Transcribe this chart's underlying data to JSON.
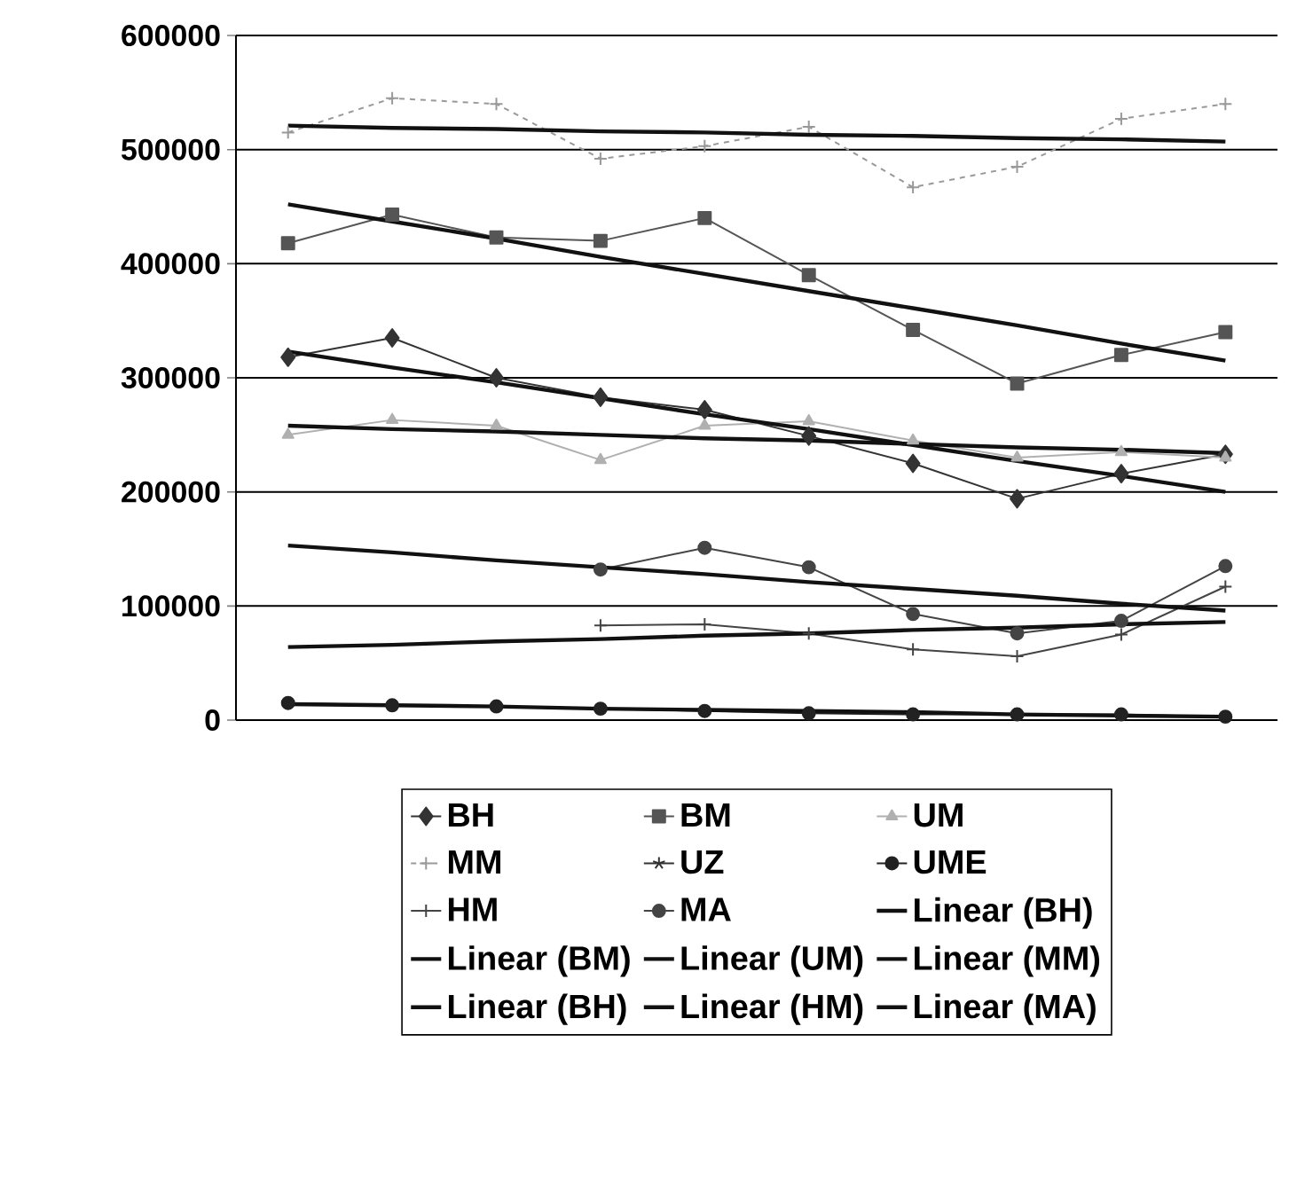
{
  "chart_data": {
    "type": "line",
    "categories": [
      null,
      null,
      null,
      null,
      null,
      null,
      null,
      null,
      null,
      null
    ],
    "ylim": [
      0,
      600000
    ],
    "yticks": [
      0,
      100000,
      200000,
      300000,
      400000,
      500000,
      600000
    ],
    "grid": "y",
    "legend": "bottom",
    "tick_labels": "y",
    "series": [
      {
        "name": "BH",
        "color": "#333333",
        "marker": "diamond",
        "values": [
          318000,
          335000,
          300000,
          283000,
          272000,
          249000,
          225000,
          194000,
          216000,
          233000
        ]
      },
      {
        "name": "BM",
        "color": "#555555",
        "marker": "square",
        "values": [
          418000,
          443000,
          423000,
          420000,
          440000,
          390000,
          342000,
          295000,
          320000,
          340000
        ]
      },
      {
        "name": "UM",
        "color": "#b0b0b0",
        "marker": "triangle",
        "values": [
          250000,
          263000,
          258000,
          228000,
          258000,
          262000,
          245000,
          230000,
          235000,
          230000
        ]
      },
      {
        "name": "MM",
        "color": "#999999",
        "marker": "cross",
        "line_style": "dashed",
        "values": [
          515000,
          545000,
          540000,
          492000,
          503000,
          520000,
          467000,
          485000,
          527000,
          540000
        ]
      },
      {
        "name": "UZ",
        "color": "#333333",
        "marker": "star",
        "values": [
          null,
          null,
          null,
          null,
          null,
          null,
          null,
          null,
          null,
          null
        ]
      },
      {
        "name": "UME",
        "color": "#222222",
        "marker": "circle",
        "values": [
          15000,
          13000,
          12000,
          10000,
          8000,
          6000,
          5000,
          5000,
          5000,
          3000
        ]
      },
      {
        "name": "HM",
        "color": "#444444",
        "marker": "cross",
        "values": [
          null,
          null,
          null,
          83000,
          84000,
          76000,
          62000,
          56000,
          75000,
          117000
        ]
      },
      {
        "name": "MA",
        "color": "#444444",
        "marker": "circle",
        "values": [
          null,
          null,
          null,
          132000,
          151000,
          134000,
          93000,
          76000,
          87000,
          135000
        ]
      },
      {
        "name": "Linear (BH)",
        "color": "#111111",
        "marker": "none",
        "values": [
          323000,
          309000,
          296000,
          282000,
          268000,
          255000,
          241000,
          227000,
          214000,
          200000
        ]
      },
      {
        "name": "Linear (BM)",
        "color": "#111111",
        "marker": "none",
        "values": [
          452000,
          437000,
          422000,
          406000,
          391000,
          376000,
          361000,
          346000,
          330000,
          315000
        ]
      },
      {
        "name": "Linear (UM)",
        "color": "#111111",
        "marker": "none",
        "values": [
          258000,
          255000,
          253000,
          250000,
          247000,
          245000,
          242000,
          239000,
          237000,
          234000
        ]
      },
      {
        "name": "Linear (MM)",
        "color": "#111111",
        "marker": "none",
        "values": [
          521000,
          519000,
          518000,
          516000,
          515000,
          513000,
          512000,
          510000,
          509000,
          507000
        ]
      },
      {
        "name": "Linear (BH)",
        "color": "#111111",
        "marker": "none",
        "values": [
          14000,
          13000,
          12000,
          10000,
          9000,
          8000,
          7000,
          5000,
          4000,
          3000
        ]
      },
      {
        "name": "Linear (HM)",
        "color": "#111111",
        "marker": "none",
        "values": [
          64000,
          66000,
          69000,
          71000,
          74000,
          76000,
          79000,
          81000,
          84000,
          86000
        ]
      },
      {
        "name": "Linear (MA)",
        "color": "#111111",
        "marker": "none",
        "values": [
          153000,
          147000,
          140000,
          134000,
          128000,
          121000,
          115000,
          109000,
          102000,
          96000
        ]
      }
    ]
  }
}
